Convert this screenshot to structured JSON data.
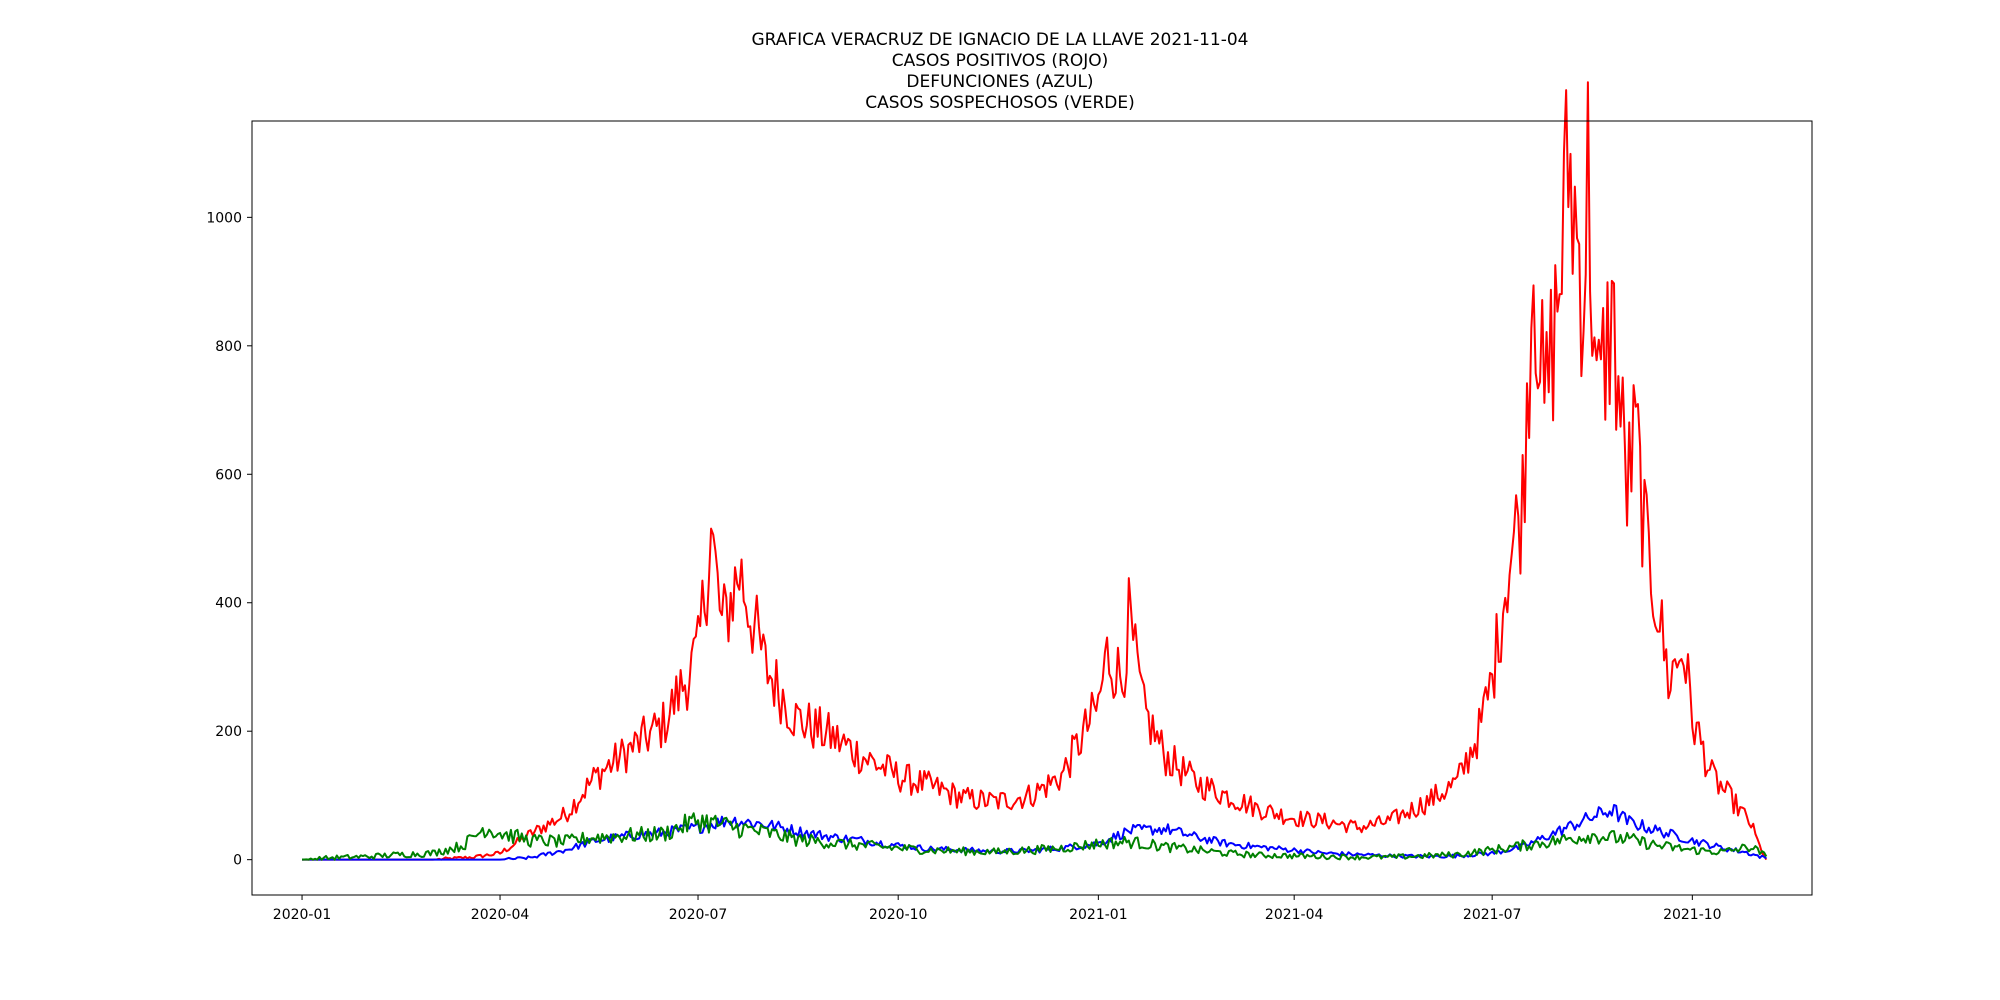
{
  "chart_data": {
    "type": "line",
    "title_lines": [
      "GRAFICA VERACRUZ DE IGNACIO DE LA LLAVE 2021-11-04",
      "CASOS POSITIVOS (ROJO)",
      "DEFUNCIONES (AZUL)",
      "CASOS SOSPECHOSOS (VERDE)"
    ],
    "xlabel": "",
    "ylabel": "",
    "x_range": [
      "2019-12-09",
      "2021-11-25"
    ],
    "ylim": [
      -55,
      1150
    ],
    "x_ticks": [
      "2020-01",
      "2020-04",
      "2020-07",
      "2020-10",
      "2021-01",
      "2021-04",
      "2021-07",
      "2021-10"
    ],
    "y_ticks": [
      0,
      200,
      400,
      600,
      800,
      1000
    ],
    "grid": false,
    "legend": "none",
    "series": [
      {
        "color": "#ff0000",
        "points": [
          [
            "2020-01-01",
            0
          ],
          [
            "2020-03-01",
            0
          ],
          [
            "2020-03-20",
            4
          ],
          [
            "2020-04-01",
            10
          ],
          [
            "2020-04-15",
            40
          ],
          [
            "2020-05-01",
            70
          ],
          [
            "2020-05-15",
            130
          ],
          [
            "2020-06-01",
            175
          ],
          [
            "2020-06-15",
            210
          ],
          [
            "2020-07-01",
            320
          ],
          [
            "2020-07-07",
            510
          ],
          [
            "2020-07-12",
            360
          ],
          [
            "2020-07-20",
            450
          ],
          [
            "2020-08-01",
            300
          ],
          [
            "2020-08-15",
            220
          ],
          [
            "2020-09-01",
            190
          ],
          [
            "2020-09-15",
            160
          ],
          [
            "2020-10-01",
            130
          ],
          [
            "2020-10-15",
            115
          ],
          [
            "2020-11-01",
            95
          ],
          [
            "2020-11-15",
            90
          ],
          [
            "2020-12-01",
            100
          ],
          [
            "2020-12-15",
            130
          ],
          [
            "2021-01-01",
            240
          ],
          [
            "2021-01-05",
            320
          ],
          [
            "2021-01-12",
            280
          ],
          [
            "2021-01-15",
            372
          ],
          [
            "2021-01-22",
            230
          ],
          [
            "2021-02-01",
            160
          ],
          [
            "2021-02-15",
            120
          ],
          [
            "2021-03-01",
            100
          ],
          [
            "2021-03-15",
            80
          ],
          [
            "2021-04-01",
            65
          ],
          [
            "2021-04-15",
            60
          ],
          [
            "2021-05-01",
            50
          ],
          [
            "2021-05-15",
            60
          ],
          [
            "2021-06-01",
            90
          ],
          [
            "2021-06-15",
            120
          ],
          [
            "2021-06-25",
            200
          ],
          [
            "2021-07-01",
            280
          ],
          [
            "2021-07-08",
            450
          ],
          [
            "2021-07-15",
            560
          ],
          [
            "2021-07-20",
            950
          ],
          [
            "2021-07-25",
            690
          ],
          [
            "2021-08-01",
            900
          ],
          [
            "2021-08-05",
            1090
          ],
          [
            "2021-08-12",
            880
          ],
          [
            "2021-08-14",
            1075
          ],
          [
            "2021-08-18",
            700
          ],
          [
            "2021-08-25",
            850
          ],
          [
            "2021-09-01",
            580
          ],
          [
            "2021-09-05",
            665
          ],
          [
            "2021-09-10",
            480
          ],
          [
            "2021-09-15",
            400
          ],
          [
            "2021-09-20",
            280
          ],
          [
            "2021-09-27",
            330
          ],
          [
            "2021-10-01",
            220
          ],
          [
            "2021-10-10",
            130
          ],
          [
            "2021-10-20",
            90
          ],
          [
            "2021-10-28",
            55
          ],
          [
            "2021-11-01",
            20
          ],
          [
            "2021-11-04",
            0
          ]
        ]
      },
      {
        "color": "#0000ff",
        "points": [
          [
            "2020-01-01",
            0
          ],
          [
            "2020-04-01",
            0
          ],
          [
            "2020-04-15",
            3
          ],
          [
            "2020-05-01",
            15
          ],
          [
            "2020-05-15",
            30
          ],
          [
            "2020-06-01",
            38
          ],
          [
            "2020-06-15",
            42
          ],
          [
            "2020-07-01",
            50
          ],
          [
            "2020-07-15",
            62
          ],
          [
            "2020-08-01",
            55
          ],
          [
            "2020-08-15",
            45
          ],
          [
            "2020-09-01",
            35
          ],
          [
            "2020-09-15",
            30
          ],
          [
            "2020-10-01",
            22
          ],
          [
            "2020-10-15",
            17
          ],
          [
            "2020-11-01",
            15
          ],
          [
            "2020-11-15",
            13
          ],
          [
            "2020-12-01",
            14
          ],
          [
            "2020-12-15",
            18
          ],
          [
            "2021-01-01",
            25
          ],
          [
            "2021-01-15",
            45
          ],
          [
            "2021-02-01",
            48
          ],
          [
            "2021-02-15",
            35
          ],
          [
            "2021-03-01",
            25
          ],
          [
            "2021-03-15",
            20
          ],
          [
            "2021-04-01",
            15
          ],
          [
            "2021-04-15",
            10
          ],
          [
            "2021-05-01",
            8
          ],
          [
            "2021-05-15",
            6
          ],
          [
            "2021-06-01",
            5
          ],
          [
            "2021-06-15",
            6
          ],
          [
            "2021-07-01",
            10
          ],
          [
            "2021-07-15",
            20
          ],
          [
            "2021-08-01",
            45
          ],
          [
            "2021-08-15",
            65
          ],
          [
            "2021-08-25",
            78
          ],
          [
            "2021-09-01",
            60
          ],
          [
            "2021-09-15",
            45
          ],
          [
            "2021-10-01",
            30
          ],
          [
            "2021-10-15",
            18
          ],
          [
            "2021-10-25",
            12
          ],
          [
            "2021-11-04",
            2
          ]
        ]
      },
      {
        "color": "#008000",
        "points": [
          [
            "2020-01-01",
            0
          ],
          [
            "2020-01-15",
            3
          ],
          [
            "2020-02-01",
            5
          ],
          [
            "2020-02-15",
            8
          ],
          [
            "2020-03-01",
            10
          ],
          [
            "2020-03-15",
            22
          ],
          [
            "2020-03-25",
            50
          ],
          [
            "2020-04-01",
            42
          ],
          [
            "2020-04-15",
            30
          ],
          [
            "2020-05-01",
            28
          ],
          [
            "2020-05-15",
            35
          ],
          [
            "2020-06-01",
            38
          ],
          [
            "2020-06-15",
            40
          ],
          [
            "2020-07-01",
            62
          ],
          [
            "2020-07-15",
            52
          ],
          [
            "2020-08-01",
            42
          ],
          [
            "2020-08-15",
            32
          ],
          [
            "2020-09-01",
            26
          ],
          [
            "2020-09-15",
            22
          ],
          [
            "2020-10-01",
            18
          ],
          [
            "2020-10-15",
            15
          ],
          [
            "2020-11-01",
            13
          ],
          [
            "2020-11-15",
            12
          ],
          [
            "2020-12-01",
            15
          ],
          [
            "2020-12-15",
            18
          ],
          [
            "2021-01-01",
            25
          ],
          [
            "2021-01-15",
            28
          ],
          [
            "2021-02-01",
            20
          ],
          [
            "2021-02-15",
            15
          ],
          [
            "2021-03-01",
            10
          ],
          [
            "2021-03-15",
            7
          ],
          [
            "2021-04-01",
            6
          ],
          [
            "2021-04-15",
            5
          ],
          [
            "2021-05-01",
            4
          ],
          [
            "2021-05-15",
            4
          ],
          [
            "2021-06-01",
            6
          ],
          [
            "2021-06-15",
            8
          ],
          [
            "2021-07-01",
            15
          ],
          [
            "2021-07-15",
            22
          ],
          [
            "2021-08-01",
            30
          ],
          [
            "2021-08-15",
            38
          ],
          [
            "2021-09-01",
            32
          ],
          [
            "2021-09-15",
            22
          ],
          [
            "2021-10-01",
            15
          ],
          [
            "2021-10-15",
            12
          ],
          [
            "2021-10-28",
            20
          ],
          [
            "2021-11-04",
            5
          ]
        ]
      }
    ]
  }
}
